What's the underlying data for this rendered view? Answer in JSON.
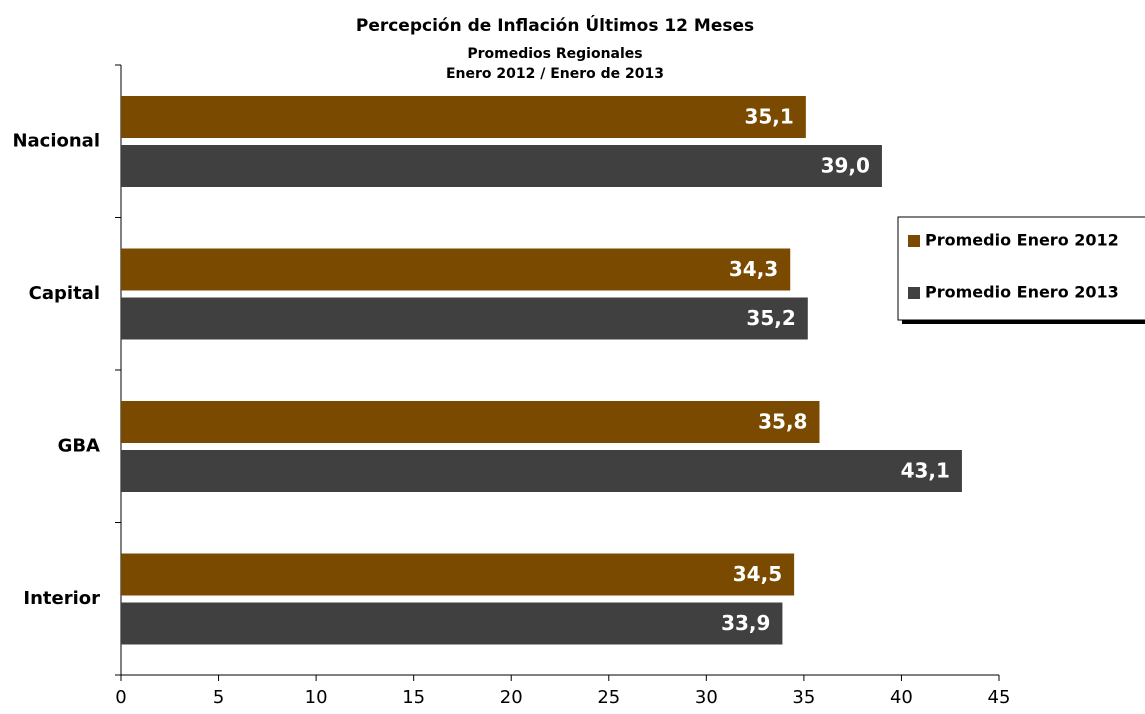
{
  "chart_data": {
    "type": "bar",
    "orientation": "horizontal",
    "title": "Percepción de Inflación Últimos 12 Meses",
    "subtitle": "Promedios Regionales",
    "subtitle2": "Enero 2012 / Enero de 2013",
    "categories": [
      "Nacional",
      "Capital",
      "GBA",
      "Interior"
    ],
    "series": [
      {
        "name": "Promedio Enero 2012",
        "color": "#7a4a00",
        "values": [
          35.1,
          34.3,
          35.8,
          34.5
        ],
        "value_labels": [
          "35,1",
          "34,3",
          "35,8",
          "34,5"
        ]
      },
      {
        "name": "Promedio Enero 2013",
        "color": "#404040",
        "values": [
          39.0,
          35.2,
          43.1,
          33.9
        ],
        "value_labels": [
          "39,0",
          "35,2",
          "43,1",
          "33,9"
        ]
      }
    ],
    "xlim": [
      0,
      45
    ],
    "xticks": [
      0,
      5,
      10,
      15,
      20,
      25,
      30,
      35,
      40,
      45
    ],
    "legend": "right"
  }
}
